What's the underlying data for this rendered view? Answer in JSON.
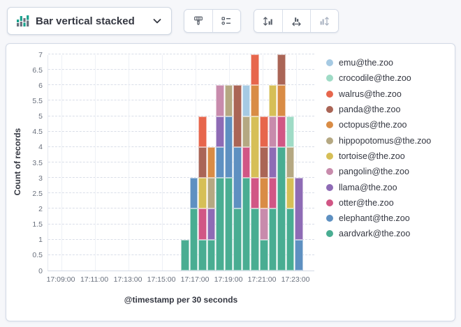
{
  "toolbar": {
    "chart_type_label": "Bar vertical stacked",
    "icons": {
      "chart_type": "bar-chart-icon",
      "dropdown": "chevron-down-icon",
      "brush": "paintbrush-icon",
      "legend_settings": "legend-list-icon",
      "left_axis": "vertical-axis-icon",
      "bottom_axis": "horizontal-axis-icon",
      "right_axis": "right-axis-icon"
    },
    "right_axis_disabled": true
  },
  "chart_data": {
    "type": "bar",
    "stacked": true,
    "orientation": "vertical",
    "xlabel": "@timestamp per 30 seconds",
    "ylabel": "Count of records",
    "ylim": [
      0,
      7
    ],
    "y_tick_step": 0.5,
    "y_tick_labels": [
      "0",
      "0.5",
      "1",
      "1.5",
      "2",
      "2.5",
      "3",
      "3.5",
      "4",
      "4.5",
      "5",
      "5.5",
      "6",
      "6.5",
      "7"
    ],
    "x_axis_tick_labels": [
      "17:09:00",
      "17:11:00",
      "17:13:00",
      "17:15:00",
      "17:17:00",
      "17:19:00",
      "17:21:00",
      "17:23:00"
    ],
    "x": [
      "17:16:30",
      "17:17:00",
      "17:17:30",
      "17:18:00",
      "17:18:30",
      "17:19:00",
      "17:19:30",
      "17:20:00",
      "17:20:30",
      "17:21:00",
      "17:21:30",
      "17:22:00",
      "17:22:30",
      "17:23:00"
    ],
    "grid": true,
    "legend_position": "right",
    "stack_order_note": "stacked bottom-to-top in reverse legend order (aardvark at bottom)",
    "series": [
      {
        "name": "emu@the.zoo",
        "color": "#A6CAE3",
        "values": [
          0,
          0,
          0,
          0,
          0,
          0,
          0,
          1,
          0,
          0,
          0,
          0,
          0,
          0
        ]
      },
      {
        "name": "crocodile@the.zoo",
        "color": "#9FDBC6",
        "values": [
          0,
          0,
          0,
          0,
          0,
          0,
          0,
          0,
          0,
          0,
          0,
          0,
          1,
          0
        ]
      },
      {
        "name": "walrus@the.zoo",
        "color": "#E7664C",
        "values": [
          0,
          0,
          1,
          0,
          0,
          0,
          0,
          0,
          1,
          1,
          0,
          0,
          0,
          0
        ]
      },
      {
        "name": "panda@the.zoo",
        "color": "#AA6556",
        "values": [
          0,
          0,
          1,
          0,
          0,
          0,
          2,
          0,
          0,
          1,
          0,
          1,
          0,
          0
        ]
      },
      {
        "name": "octopus@the.zoo",
        "color": "#D98C45",
        "values": [
          0,
          0,
          0,
          1,
          0,
          0,
          0,
          0,
          1,
          1,
          0,
          1,
          0,
          0
        ]
      },
      {
        "name": "hippopotomus@the.zoo",
        "color": "#B5A882",
        "values": [
          0,
          0,
          0,
          1,
          0,
          1,
          0,
          1,
          0,
          0,
          0,
          0,
          1,
          0
        ]
      },
      {
        "name": "tortoise@the.zoo",
        "color": "#D6BF57",
        "values": [
          0,
          0,
          1,
          0,
          0,
          0,
          0,
          0,
          2,
          0,
          1,
          0,
          1,
          0
        ]
      },
      {
        "name": "pangolin@the.zoo",
        "color": "#C88BAC",
        "values": [
          0,
          0,
          0,
          0,
          1,
          0,
          0,
          0,
          0,
          1,
          1,
          0,
          0,
          0
        ]
      },
      {
        "name": "llama@the.zoo",
        "color": "#8E6BB5",
        "values": [
          0,
          0,
          0,
          1,
          1,
          0,
          0,
          0,
          0,
          0,
          1,
          0,
          0,
          2
        ]
      },
      {
        "name": "otter@the.zoo",
        "color": "#D15685",
        "values": [
          0,
          0,
          1,
          0,
          0,
          0,
          0,
          1,
          1,
          0,
          1,
          1,
          0,
          0
        ]
      },
      {
        "name": "elephant@the.zoo",
        "color": "#5E90C1",
        "values": [
          0,
          1,
          0,
          0,
          1,
          2,
          2,
          0,
          0,
          0,
          0,
          0,
          0,
          1
        ]
      },
      {
        "name": "aardvark@the.zoo",
        "color": "#49AD92",
        "values": [
          1,
          2,
          1,
          1,
          3,
          3,
          2,
          3,
          2,
          1,
          2,
          4,
          2,
          0
        ]
      }
    ]
  }
}
